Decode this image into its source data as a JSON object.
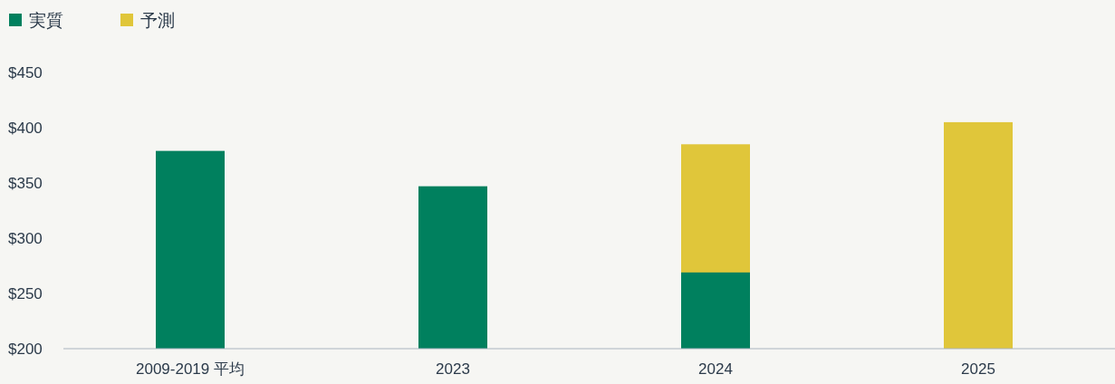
{
  "chart_data": {
    "type": "bar",
    "categories": [
      "2009-2019 平均",
      "2023",
      "2024",
      "2025"
    ],
    "series": [
      {
        "name": "実質",
        "color": "#00805e",
        "values": [
          379,
          347,
          269,
          null
        ]
      },
      {
        "name": "予測",
        "color": "#e0c63a",
        "values": [
          null,
          null,
          385,
          405
        ]
      }
    ],
    "ylim": [
      200,
      450
    ],
    "yticks": [
      {
        "value": 200,
        "label": "$200"
      },
      {
        "value": 250,
        "label": "$250"
      },
      {
        "value": 300,
        "label": "$300"
      },
      {
        "value": 350,
        "label": "$350"
      },
      {
        "value": 400,
        "label": "$400"
      },
      {
        "value": 450,
        "label": "$450"
      }
    ],
    "grid": false,
    "legend": "top left"
  }
}
